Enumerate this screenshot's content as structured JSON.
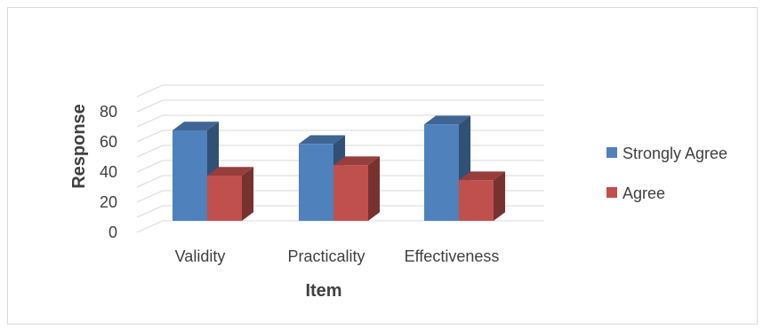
{
  "chart_data": {
    "type": "bar",
    "categories": [
      "Validity",
      "Practicality",
      "Effectiveness"
    ],
    "series": [
      {
        "name": "Strongly Agree",
        "values": [
          60,
          51,
          64
        ],
        "color": "#4f81bd"
      },
      {
        "name": "Agree",
        "values": [
          30,
          37,
          27
        ],
        "color": "#c0504d"
      }
    ],
    "xlabel": "Item",
    "ylabel": "Response",
    "yticks": [
      0,
      20,
      40,
      60,
      80
    ],
    "ylim": [
      0,
      80
    ],
    "grid": true,
    "legend_position": "right",
    "style": "3d-clustered"
  }
}
